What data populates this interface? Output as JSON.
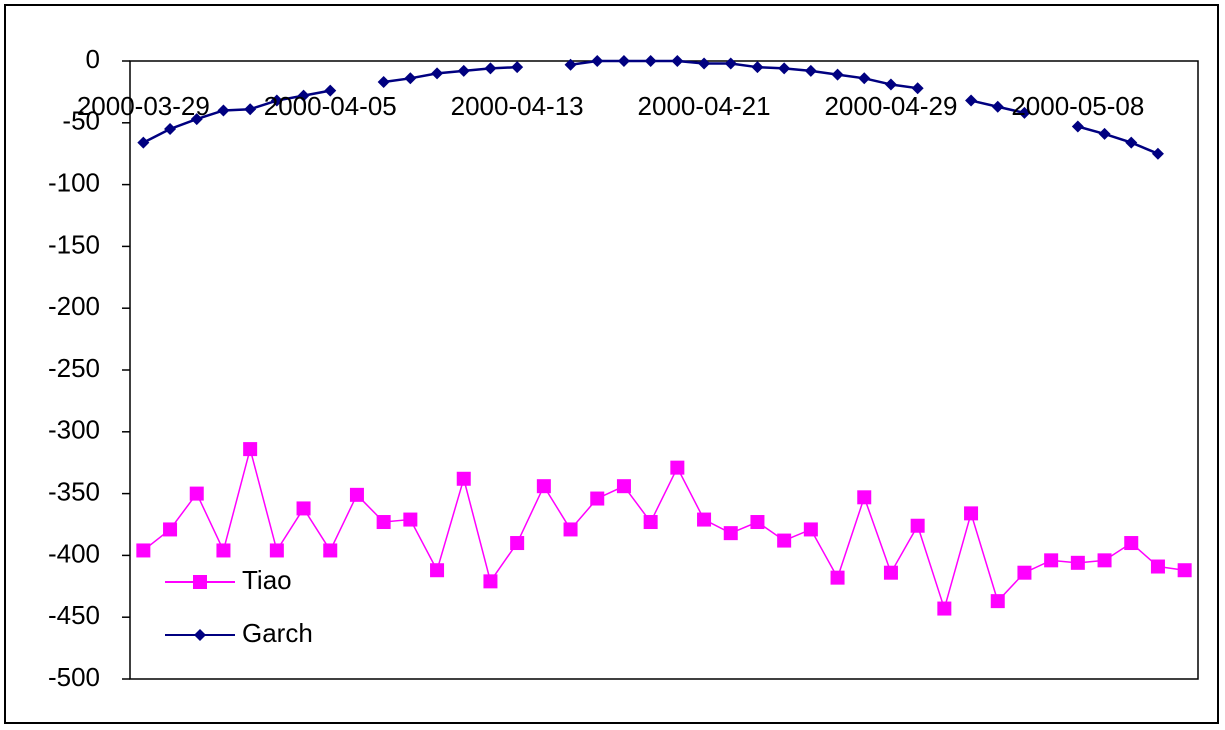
{
  "chart_data": {
    "type": "line",
    "categories": [
      "2000-03-29",
      null,
      null,
      null,
      null,
      null,
      null,
      "2000-04-05",
      null,
      null,
      null,
      null,
      null,
      null,
      "2000-04-13",
      null,
      null,
      null,
      null,
      null,
      null,
      "2000-04-21",
      null,
      null,
      null,
      null,
      null,
      null,
      "2000-04-29",
      null,
      null,
      null,
      null,
      null,
      null,
      "2000-05-08",
      null,
      null,
      null,
      null
    ],
    "series": [
      {
        "name": "Tiao",
        "color": "#ff00ff",
        "marker": "square",
        "values": [
          -396,
          -379,
          -350,
          -396,
          -314,
          -396,
          -362,
          -396,
          -351,
          -373,
          -371,
          -412,
          -338,
          -421,
          -390,
          -344,
          -379,
          -354,
          -344,
          -373,
          -329,
          -371,
          -382,
          -373,
          -388,
          -379,
          -418,
          -353,
          -414,
          -376,
          -443,
          -366,
          -437,
          -414,
          -404,
          -406,
          -404,
          -390,
          -409,
          -412
        ]
      },
      {
        "name": "Garch",
        "color": "#000080",
        "marker": "diamond",
        "values": [
          -66,
          -55,
          -47,
          -40,
          -39,
          -32,
          -28,
          -24,
          null,
          -17,
          -14,
          -10,
          -8,
          -6,
          -5,
          null,
          -3,
          0,
          0,
          0,
          0,
          -2,
          -2,
          -5,
          -6,
          -8,
          -11,
          -14,
          -19,
          -22,
          null,
          -32,
          -37,
          -42,
          null,
          -53,
          -59,
          -66,
          -75,
          null
        ]
      }
    ],
    "ylim": [
      -500,
      0
    ],
    "yticks": [
      -500,
      -450,
      -400,
      -350,
      -300,
      -250,
      -200,
      -150,
      -100,
      -50,
      0
    ],
    "legend": "lower-left"
  }
}
